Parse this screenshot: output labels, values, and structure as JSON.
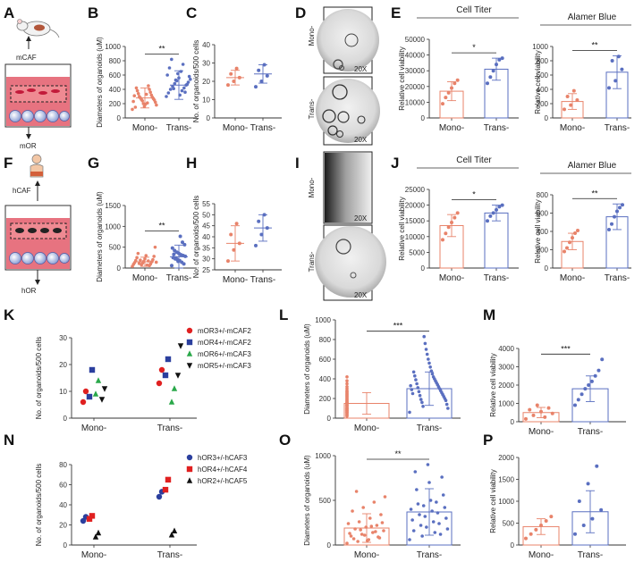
{
  "figure": {
    "panel_labels": [
      "A",
      "B",
      "C",
      "D",
      "E",
      "F",
      "G",
      "H",
      "I",
      "J",
      "K",
      "L",
      "M",
      "N",
      "O",
      "P"
    ],
    "colors": {
      "mono": "#e8836a",
      "trans": "#5a6fc0",
      "red": "#e02020",
      "blue": "#2b3f9e",
      "green": "#2aa84a",
      "black": "#111111",
      "pink": "#f4b6b6",
      "well": "#e35b6a"
    },
    "schematic_top": {
      "cell_label": "mCAF",
      "organoid_label": "mOR"
    },
    "schematic_bottom": {
      "cell_label": "hCAF",
      "organoid_label": "hOR"
    },
    "images_top": {
      "rows": [
        "Mono-",
        "Trans-"
      ],
      "magnification": "20X"
    },
    "images_bottom": {
      "rows": [
        "Mono-",
        "Trans-"
      ],
      "magnification": "20X"
    },
    "legend_K": [
      "mOR3+/-mCAF2",
      "mOR4+/-mCAF2",
      "mOR6+/-mCAF3",
      "mOR5+/-mCAF3"
    ],
    "legend_N": [
      "hOR3+/-hCAF3",
      "hOR4+/-hCAF4",
      "hOR2+/-hCAF5"
    ]
  },
  "chart_data": [
    {
      "panel": "B",
      "type": "scatter",
      "ylabel": "Diameters of organoids (uM)",
      "categories": [
        "Mono-",
        "Trans-"
      ],
      "ylim": [
        0,
        1000
      ],
      "yticks": [
        "0",
        "200",
        "400",
        "600",
        "800",
        "1000"
      ],
      "means": [
        280,
        460
      ],
      "sds": [
        140,
        200
      ],
      "significance": "**",
      "values": [
        [
          120,
          160,
          180,
          200,
          220,
          240,
          250,
          260,
          270,
          280,
          290,
          300,
          320,
          340,
          360,
          380,
          400,
          420,
          450,
          150,
          210,
          310,
          330,
          230,
          190
        ],
        [
          300,
          320,
          350,
          380,
          400,
          420,
          440,
          460,
          480,
          500,
          520,
          540,
          560,
          600,
          650,
          700,
          750,
          820,
          360,
          410,
          470,
          530,
          580,
          620
        ]
      ]
    },
    {
      "panel": "C",
      "type": "scatter",
      "ylabel": "No. of organoids/500 cells",
      "categories": [
        "Mono-",
        "Trans-"
      ],
      "ylim": [
        0,
        40
      ],
      "yticks": [
        "0",
        "10",
        "20",
        "30",
        "40"
      ],
      "means": [
        22,
        24
      ],
      "sds": [
        4,
        5
      ],
      "significance": "",
      "values": [
        [
          18,
          20,
          22,
          24,
          27
        ],
        [
          17,
          20,
          23,
          26,
          29
        ]
      ]
    },
    {
      "panel": "E1",
      "type": "bar",
      "title": "Cell Titer",
      "ylabel": "Relative cell viability",
      "categories": [
        "Mono-",
        "Trans-"
      ],
      "ylim": [
        0,
        50000
      ],
      "yticks": [
        "0",
        "10000",
        "20000",
        "30000",
        "40000",
        "50000"
      ],
      "means": [
        17000,
        31000
      ],
      "sds": [
        6000,
        7000
      ],
      "significance": "*",
      "values": [
        [
          9000,
          13000,
          16000,
          19000,
          22000,
          24000
        ],
        [
          22000,
          26000,
          30000,
          34000,
          37000,
          38000
        ]
      ]
    },
    {
      "panel": "E2",
      "type": "bar",
      "title": "Alamer Blue",
      "ylabel": "Relative cell viability",
      "categories": [
        "Mono-",
        "Trans-"
      ],
      "ylim": [
        0,
        1000
      ],
      "yticks": [
        "0",
        "200",
        "400",
        "600",
        "800",
        "1000"
      ],
      "means": [
        230,
        640
      ],
      "sds": [
        110,
        230
      ],
      "significance": "**",
      "values": [
        [
          120,
          180,
          250,
          300,
          380
        ],
        [
          420,
          520,
          680,
          800,
          860
        ]
      ]
    },
    {
      "panel": "G",
      "type": "scatter",
      "ylabel": "Diameters of organoids (uM)",
      "categories": [
        "Mono-",
        "Trans-"
      ],
      "ylim": [
        0,
        1500
      ],
      "yticks": [
        "0",
        "500",
        "1000",
        "1500"
      ],
      "means": [
        150,
        270
      ],
      "sds": [
        110,
        280
      ],
      "significance": "**",
      "values": [
        [
          40,
          60,
          80,
          90,
          100,
          120,
          130,
          150,
          160,
          180,
          200,
          220,
          250,
          280,
          300,
          350,
          500,
          70,
          110,
          140,
          170,
          190
        ],
        [
          60,
          100,
          140,
          180,
          200,
          220,
          250,
          280,
          300,
          320,
          350,
          380,
          420,
          480,
          560,
          620,
          760,
          160,
          240,
          330
        ]
      ]
    },
    {
      "panel": "H",
      "type": "scatter",
      "ylabel": "No. of organoids/500 cells",
      "categories": [
        "Mono-",
        "Trans-"
      ],
      "ylim": [
        25,
        55
      ],
      "yticks": [
        "25",
        "30",
        "35",
        "40",
        "45",
        "50",
        "55"
      ],
      "means": [
        37,
        44
      ],
      "sds": [
        8,
        6
      ],
      "significance": "",
      "values": [
        [
          29,
          34,
          37,
          41,
          46
        ],
        [
          36,
          41,
          44,
          47,
          50
        ]
      ]
    },
    {
      "panel": "J1",
      "type": "bar",
      "title": "Cell Titer",
      "ylabel": "Relative cell viability",
      "categories": [
        "Mono-",
        "Trans-"
      ],
      "ylim": [
        0,
        25000
      ],
      "yticks": [
        "0",
        "5000",
        "10000",
        "15000",
        "20000",
        "25000"
      ],
      "means": [
        13500,
        17500
      ],
      "sds": [
        3500,
        2500
      ],
      "significance": "*",
      "values": [
        [
          9000,
          11000,
          13000,
          14500,
          16000,
          17500
        ],
        [
          15000,
          16500,
          17500,
          18500,
          19500,
          20000
        ]
      ]
    },
    {
      "panel": "J2",
      "type": "bar",
      "title": "Alamer Blue",
      "ylabel": "Relative cell viability",
      "categories": [
        "Mono-",
        "Trans-"
      ],
      "ylim": [
        0,
        800
      ],
      "yticks": [
        "0",
        "200",
        "400",
        "600",
        "800"
      ],
      "means": [
        290,
        560
      ],
      "sds": [
        90,
        140
      ],
      "significance": "**",
      "values": [
        [
          180,
          220,
          280,
          330,
          380,
          410
        ],
        [
          420,
          480,
          560,
          620,
          660,
          690
        ]
      ]
    },
    {
      "panel": "K",
      "type": "scatter",
      "ylabel": "No. of organoids/500 cells",
      "categories": [
        "Mono-",
        "Trans-"
      ],
      "ylim": [
        0,
        30
      ],
      "yticks": [
        "0",
        "10",
        "20",
        "30"
      ],
      "series": [
        {
          "name": "mOR3+/-mCAF2",
          "values": [
            [
              6,
              10
            ],
            [
              13,
              18
            ]
          ]
        },
        {
          "name": "mOR4+/-mCAF2",
          "values": [
            [
              8,
              18
            ],
            [
              16,
              22
            ]
          ]
        },
        {
          "name": "mOR6+/-mCAF3",
          "values": [
            [
              9,
              14
            ],
            [
              6,
              11
            ]
          ]
        },
        {
          "name": "mOR5+/-mCAF3",
          "values": [
            [
              7,
              11
            ],
            [
              16,
              27
            ]
          ]
        }
      ]
    },
    {
      "panel": "L",
      "type": "bar",
      "ylabel": "Diameters of organoids (uM)",
      "categories": [
        "Mono-",
        "Trans-"
      ],
      "ylim": [
        0,
        1000
      ],
      "yticks": [
        "0",
        "200",
        "400",
        "600",
        "800",
        "1000"
      ],
      "means": [
        150,
        300
      ],
      "sds": [
        110,
        170
      ],
      "significance": "***",
      "values": [
        [
          20,
          40,
          60,
          80,
          100,
          120,
          140,
          160,
          180,
          200,
          220,
          240,
          260,
          280,
          300,
          320,
          350,
          380,
          420,
          30,
          50,
          70,
          90,
          110,
          130,
          150,
          170,
          190,
          210,
          230,
          250,
          270,
          60,
          80,
          100,
          130,
          160
        ],
        [
          60,
          100,
          140,
          180,
          200,
          220,
          240,
          260,
          280,
          300,
          320,
          340,
          360,
          380,
          400,
          420,
          450,
          480,
          520,
          560,
          600,
          650,
          700,
          760,
          830,
          120,
          160,
          190,
          230,
          270,
          310,
          350,
          390,
          430,
          470,
          250,
          290,
          330
        ]
      ]
    },
    {
      "panel": "M",
      "type": "bar",
      "ylabel": "Relative cell viability",
      "categories": [
        "Mono-",
        "Trans-"
      ],
      "ylim": [
        0,
        4000
      ],
      "yticks": [
        "0",
        "1000",
        "2000",
        "3000",
        "4000"
      ],
      "means": [
        500,
        1800
      ],
      "sds": [
        280,
        700
      ],
      "significance": "***",
      "values": [
        [
          150,
          250,
          350,
          450,
          550,
          650,
          750,
          900
        ],
        [
          900,
          1200,
          1500,
          1800,
          2000,
          2200,
          2500,
          2800,
          3400
        ]
      ]
    },
    {
      "panel": "N",
      "type": "scatter",
      "ylabel": "No. of organoids/500 cells",
      "categories": [
        "Mono-",
        "Trans-"
      ],
      "ylim": [
        0,
        80
      ],
      "yticks": [
        "0",
        "20",
        "40",
        "60",
        "80"
      ],
      "series": [
        {
          "name": "hOR3+/-hCAF3",
          "values": [
            [
              24,
              28
            ],
            [
              48,
              53
            ]
          ]
        },
        {
          "name": "hOR4+/-hCAF4",
          "values": [
            [
              26,
              29
            ],
            [
              55,
              65
            ]
          ]
        },
        {
          "name": "hOR2+/-hCAF5",
          "values": [
            [
              8,
              12
            ],
            [
              10,
              14
            ]
          ]
        }
      ]
    },
    {
      "panel": "O",
      "type": "bar",
      "ylabel": "Diameters of organoids (uM)",
      "categories": [
        "Mono-",
        "Trans-"
      ],
      "ylim": [
        0,
        1000
      ],
      "yticks": [
        "0",
        "500",
        "1000"
      ],
      "means": [
        190,
        370
      ],
      "sds": [
        160,
        260
      ],
      "significance": "**",
      "values": [
        [
          20,
          40,
          60,
          80,
          100,
          120,
          140,
          160,
          180,
          200,
          220,
          240,
          260,
          300,
          340,
          380,
          420,
          480,
          540,
          600,
          50,
          90,
          130,
          170,
          210,
          250,
          70,
          110,
          150
        ],
        [
          60,
          100,
          140,
          180,
          220,
          260,
          300,
          340,
          380,
          420,
          460,
          500,
          560,
          620,
          700,
          760,
          820,
          900,
          120,
          160,
          200,
          240,
          280,
          320,
          360,
          400,
          440,
          480
        ]
      ]
    },
    {
      "panel": "P",
      "type": "bar",
      "ylabel": "Relative cell viability",
      "categories": [
        "Mono-",
        "Trans-"
      ],
      "ylim": [
        0,
        2000
      ],
      "yticks": [
        "0",
        "500",
        "1000",
        "1500",
        "2000"
      ],
      "means": [
        420,
        760
      ],
      "sds": [
        180,
        480
      ],
      "significance": "",
      "values": [
        [
          150,
          250,
          350,
          450,
          550,
          650
        ],
        [
          250,
          450,
          600,
          800,
          1000,
          1400,
          1800
        ]
      ]
    }
  ]
}
